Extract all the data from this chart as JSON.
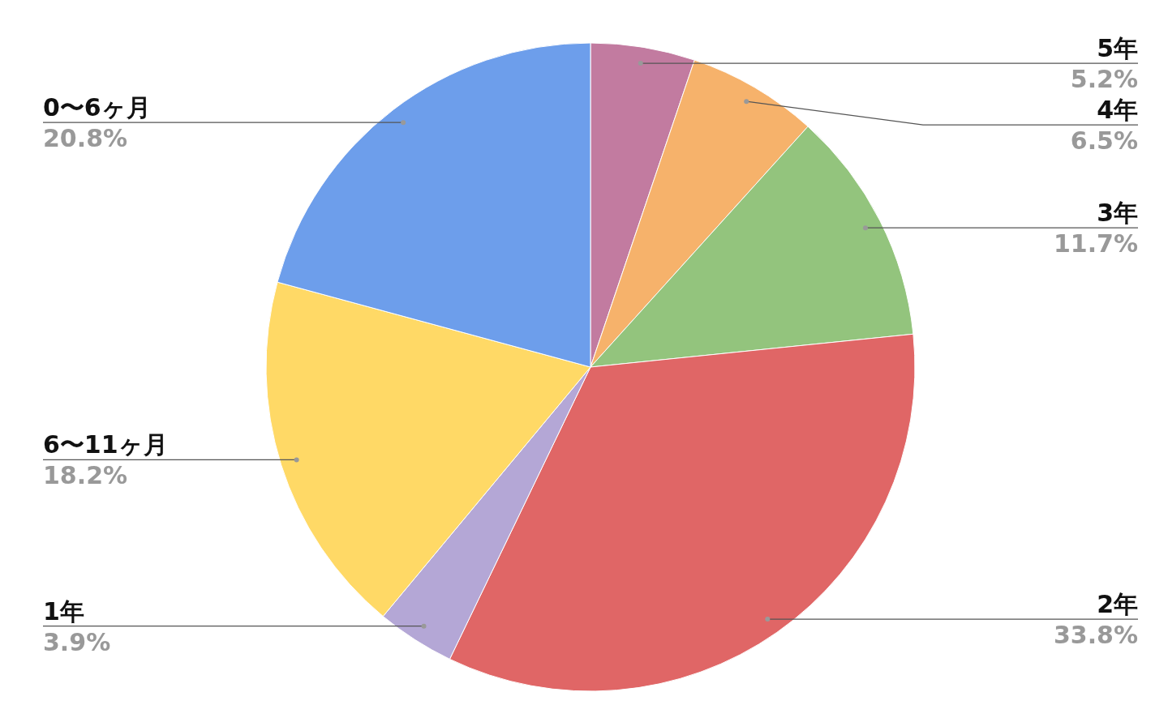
{
  "chart_data": {
    "type": "pie",
    "categories": [
      "5年",
      "4年",
      "3年",
      "2年",
      "1年",
      "6〜11ヶ月",
      "0〜6ヶ月"
    ],
    "values": [
      5.2,
      6.5,
      11.7,
      33.8,
      3.9,
      18.2,
      20.8
    ],
    "value_labels": [
      "5.2%",
      "6.5%",
      "11.7%",
      "33.8%",
      "3.9%",
      "18.2%",
      "20.8%"
    ],
    "colors": [
      "#c27ba0",
      "#f6b26b",
      "#93c47d",
      "#e06666",
      "#b4a7d6",
      "#ffd966",
      "#6d9eeb"
    ]
  }
}
